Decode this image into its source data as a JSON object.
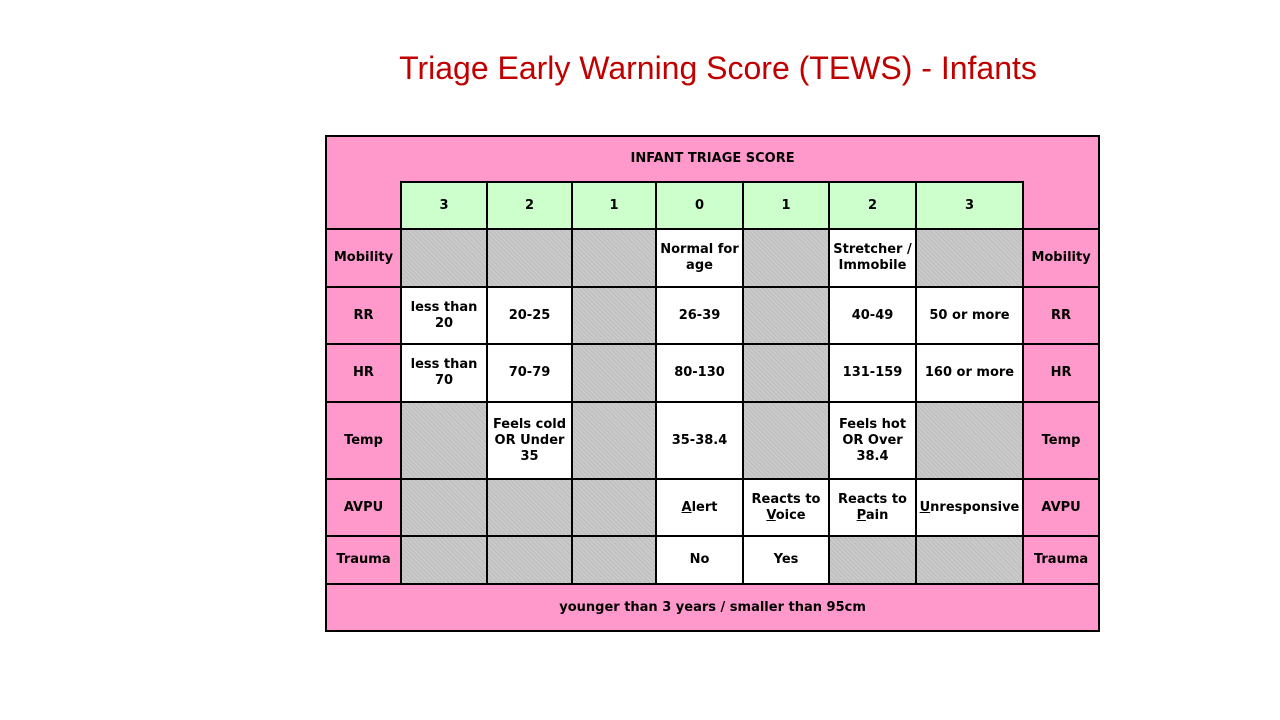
{
  "title": "Triage Early Warning Score (TEWS) - Infants",
  "table": {
    "heading": "INFANT TRIAGE SCORE",
    "scores": [
      "3",
      "2",
      "1",
      "0",
      "1",
      "2",
      "3"
    ],
    "rows": [
      {
        "label": "Mobility",
        "cells": [
          null,
          null,
          null,
          "Normal for age",
          null,
          "Stretcher / Immobile",
          null
        ]
      },
      {
        "label": "RR",
        "cells": [
          "less than 20",
          "20-25",
          null,
          "26-39",
          null,
          "40-49",
          "50 or more"
        ]
      },
      {
        "label": "HR",
        "cells": [
          "less than 70",
          "70-79",
          null,
          "80-130",
          null,
          "131-159",
          "160 or more"
        ]
      },
      {
        "label": "Temp",
        "cells": [
          null,
          "Feels cold OR Under 35",
          null,
          "35-38.4",
          null,
          "Feels hot OR Over 38.4",
          null
        ]
      },
      {
        "label": "AVPU",
        "cells": [
          null,
          null,
          null,
          "Alert",
          "Reacts to Voice",
          "Reacts to Pain",
          "Unresponsive"
        ]
      },
      {
        "label": "Trauma",
        "cells": [
          null,
          null,
          null,
          "No",
          "Yes",
          null,
          null
        ]
      }
    ],
    "footer": "younger than 3 years / smaller than 95cm"
  }
}
